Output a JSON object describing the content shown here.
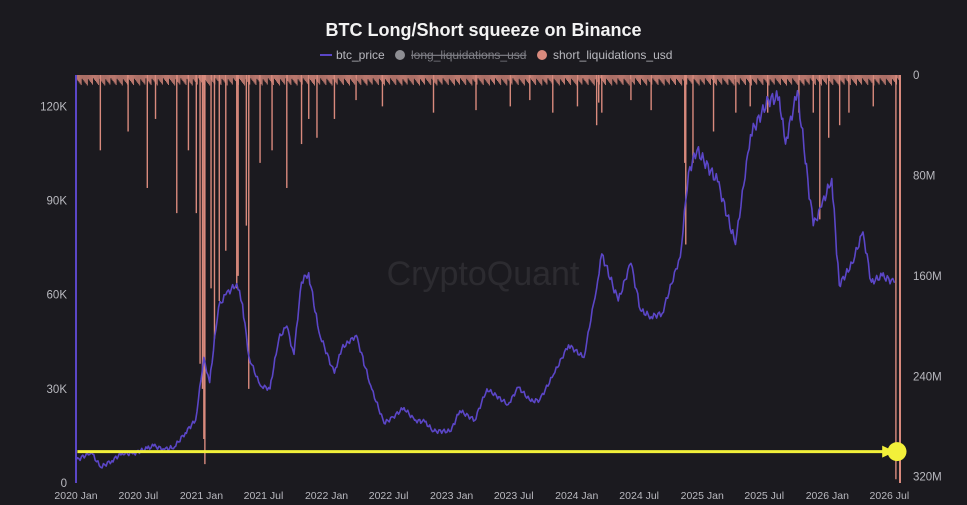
{
  "chart_data": {
    "type": "line",
    "title": "BTC Long/Short squeeze on Binance",
    "watermark": "CryptoQuant",
    "legend": [
      {
        "name": "btc_price",
        "color": "#5b46c7",
        "marker": "line",
        "active": true
      },
      {
        "name": "long_liquidations_usd",
        "color": "#8e8e93",
        "marker": "dot",
        "active": false
      },
      {
        "name": "short_liquidations_usd",
        "color": "#d98a7d",
        "marker": "dot",
        "active": true
      }
    ],
    "legend_placement": "top-center",
    "grid": false,
    "colors": {
      "background": "#1b1a1f",
      "price": "#5b46c7",
      "liquidations": "#d98a7d",
      "axis_text": "#b9b9bf",
      "highlight": "#f2f03a",
      "title": "#f3f3f3"
    },
    "x_axis": {
      "type": "date",
      "ticks": [
        "2020 Jan",
        "2020 Jul",
        "2021 Jan",
        "2021 Jul",
        "2022 Jan",
        "2022 Jul",
        "2023 Jan",
        "2023 Jul",
        "2024 Jan",
        "2024 Jul",
        "2025 Jan",
        "2025 Jul",
        "2026 Jan",
        "2026 Jul"
      ],
      "range": [
        "2020-01-01",
        "2026-08-01"
      ]
    },
    "y_left": {
      "ticks": [
        "0",
        "30K",
        "60K",
        "90K",
        "120K"
      ],
      "tick_values": [
        0,
        30000,
        60000,
        90000,
        120000
      ],
      "range": [
        0,
        130000
      ]
    },
    "y_right": {
      "ticks": [
        "0",
        "80M",
        "160M",
        "240M",
        "320M"
      ],
      "tick_values": [
        0,
        80000000,
        160000000,
        240000000,
        320000000
      ],
      "range": [
        0,
        325000000
      ],
      "inverted": true
    },
    "series": [
      {
        "name": "btc_price",
        "axis": "left",
        "kind": "line",
        "points": [
          [
            "2020-01-01",
            7200
          ],
          [
            "2020-02-15",
            9800
          ],
          [
            "2020-03-13",
            5000
          ],
          [
            "2020-04-15",
            7100
          ],
          [
            "2020-05-15",
            9500
          ],
          [
            "2020-06-15",
            9300
          ],
          [
            "2020-07-27",
            11000
          ],
          [
            "2020-08-15",
            11800
          ],
          [
            "2020-09-15",
            10700
          ],
          [
            "2020-10-15",
            11500
          ],
          [
            "2020-11-15",
            16000
          ],
          [
            "2020-12-15",
            20000
          ],
          [
            "2021-01-08",
            40000
          ],
          [
            "2021-01-25",
            32000
          ],
          [
            "2021-02-20",
            56000
          ],
          [
            "2021-03-13",
            60000
          ],
          [
            "2021-04-14",
            63500
          ],
          [
            "2021-05-01",
            57000
          ],
          [
            "2021-05-20",
            40000
          ],
          [
            "2021-06-22",
            31000
          ],
          [
            "2021-07-20",
            30000
          ],
          [
            "2021-08-15",
            46000
          ],
          [
            "2021-09-07",
            50000
          ],
          [
            "2021-09-28",
            41000
          ],
          [
            "2021-10-20",
            64000
          ],
          [
            "2021-11-10",
            67000
          ],
          [
            "2021-12-10",
            48000
          ],
          [
            "2022-01-24",
            35000
          ],
          [
            "2022-02-15",
            43000
          ],
          [
            "2022-03-29",
            47000
          ],
          [
            "2022-05-10",
            31000
          ],
          [
            "2022-06-18",
            19000
          ],
          [
            "2022-07-15",
            21000
          ],
          [
            "2022-08-15",
            24000
          ],
          [
            "2022-09-15",
            20000
          ],
          [
            "2022-10-15",
            19500
          ],
          [
            "2022-11-10",
            16500
          ],
          [
            "2022-12-30",
            16500
          ],
          [
            "2023-01-25",
            23000
          ],
          [
            "2023-03-10",
            20000
          ],
          [
            "2023-04-14",
            30000
          ],
          [
            "2023-06-15",
            25000
          ],
          [
            "2023-07-15",
            30500
          ],
          [
            "2023-08-20",
            26000
          ],
          [
            "2023-09-15",
            26500
          ],
          [
            "2023-10-25",
            34500
          ],
          [
            "2023-12-08",
            44000
          ],
          [
            "2024-01-22",
            40000
          ],
          [
            "2024-02-28",
            62000
          ],
          [
            "2024-03-14",
            73000
          ],
          [
            "2024-05-01",
            58000
          ],
          [
            "2024-06-07",
            70000
          ],
          [
            "2024-07-05",
            55000
          ],
          [
            "2024-08-05",
            53000
          ],
          [
            "2024-09-06",
            54000
          ],
          [
            "2024-10-29",
            72000
          ],
          [
            "2024-11-22",
            99000
          ],
          [
            "2024-12-17",
            106000
          ],
          [
            "2025-02-15",
            96000
          ],
          [
            "2025-04-08",
            76000
          ],
          [
            "2025-05-22",
            111000
          ],
          [
            "2025-07-14",
            122000
          ],
          [
            "2025-08-14",
            123000
          ],
          [
            "2025-09-01",
            108000
          ],
          [
            "2025-10-06",
            125000
          ],
          [
            "2025-11-21",
            82000
          ],
          [
            "2025-12-15",
            88000
          ],
          [
            "2026-01-14",
            97000
          ],
          [
            "2026-02-05",
            63000
          ],
          [
            "2026-03-15",
            70000
          ],
          [
            "2026-04-15",
            80000
          ],
          [
            "2026-05-10",
            64000
          ],
          [
            "2026-06-10",
            66000
          ],
          [
            "2026-07-15",
            64000
          ]
        ]
      },
      {
        "name": "short_liquidations_usd",
        "axis": "right",
        "kind": "bars",
        "baseline_usd": 6000000,
        "spikes": [
          [
            "2020-03-12",
            60000000
          ],
          [
            "2020-06-01",
            45000000
          ],
          [
            "2020-07-27",
            90000000
          ],
          [
            "2020-08-20",
            35000000
          ],
          [
            "2020-10-21",
            110000000
          ],
          [
            "2020-11-24",
            60000000
          ],
          [
            "2020-12-17",
            110000000
          ],
          [
            "2020-12-28",
            230000000
          ],
          [
            "2021-01-04",
            250000000
          ],
          [
            "2021-01-08",
            290000000
          ],
          [
            "2021-01-11",
            310000000
          ],
          [
            "2021-01-29",
            170000000
          ],
          [
            "2021-02-08",
            210000000
          ],
          [
            "2021-02-22",
            180000000
          ],
          [
            "2021-03-13",
            140000000
          ],
          [
            "2021-04-14",
            170000000
          ],
          [
            "2021-04-18",
            160000000
          ],
          [
            "2021-05-12",
            120000000
          ],
          [
            "2021-05-19",
            250000000
          ],
          [
            "2021-06-21",
            70000000
          ],
          [
            "2021-07-26",
            60000000
          ],
          [
            "2021-09-07",
            90000000
          ],
          [
            "2021-10-20",
            55000000
          ],
          [
            "2021-11-10",
            35000000
          ],
          [
            "2021-12-04",
            50000000
          ],
          [
            "2022-01-24",
            35000000
          ],
          [
            "2022-03-28",
            20000000
          ],
          [
            "2022-06-13",
            25000000
          ],
          [
            "2022-11-09",
            30000000
          ],
          [
            "2023-03-13",
            28000000
          ],
          [
            "2023-06-21",
            25000000
          ],
          [
            "2023-08-17",
            20000000
          ],
          [
            "2023-10-23",
            30000000
          ],
          [
            "2024-01-03",
            25000000
          ],
          [
            "2024-02-28",
            40000000
          ],
          [
            "2024-03-05",
            22000000
          ],
          [
            "2024-03-14",
            30000000
          ],
          [
            "2024-06-07",
            20000000
          ],
          [
            "2024-08-05",
            28000000
          ],
          [
            "2024-11-11",
            70000000
          ],
          [
            "2024-11-14",
            135000000
          ],
          [
            "2024-12-05",
            70000000
          ],
          [
            "2025-02-03",
            45000000
          ],
          [
            "2025-04-09",
            30000000
          ],
          [
            "2025-05-21",
            25000000
          ],
          [
            "2025-07-11",
            30000000
          ],
          [
            "2025-10-10",
            30000000
          ],
          [
            "2025-11-21",
            30000000
          ],
          [
            "2025-12-10",
            115000000
          ],
          [
            "2026-01-05",
            50000000
          ],
          [
            "2026-02-06",
            40000000
          ],
          [
            "2026-03-05",
            30000000
          ],
          [
            "2026-05-15",
            25000000
          ],
          [
            "2026-07-20",
            322000000
          ]
        ]
      }
    ],
    "annotation": {
      "type": "arrow",
      "from": [
        "2020-01-05",
        300000000
      ],
      "to": [
        "2026-07-15",
        300000000
      ],
      "axis": "right",
      "color": "#f2f03a"
    }
  }
}
